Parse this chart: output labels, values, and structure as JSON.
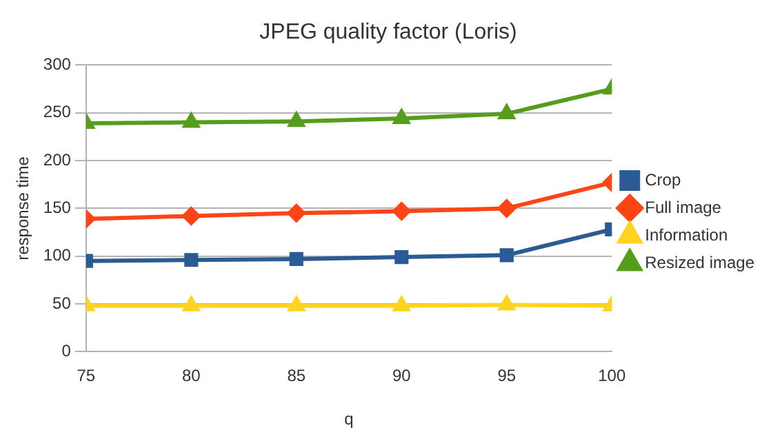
{
  "chart_data": {
    "type": "line",
    "title": "JPEG quality factor (Loris)",
    "xlabel": "q",
    "ylabel": "response time",
    "x": [
      75,
      80,
      85,
      90,
      95,
      100
    ],
    "series": [
      {
        "name": "Crop",
        "color": "#2a5b94",
        "marker": "square",
        "values": [
          95,
          96,
          97,
          99,
          101,
          128
        ]
      },
      {
        "name": "Full image",
        "color": "#ff4415",
        "marker": "diamond",
        "values": [
          139,
          142,
          145,
          147,
          150,
          177
        ]
      },
      {
        "name": "Information",
        "color": "#ffd320",
        "marker": "triangle",
        "values": [
          48,
          48,
          48,
          48,
          49,
          48
        ]
      },
      {
        "name": "Resized image",
        "color": "#579d1c",
        "marker": "triangle",
        "values": [
          239,
          240,
          241,
          244,
          249,
          275
        ]
      }
    ],
    "xlim": [
      75,
      100
    ],
    "xticks": [
      75,
      80,
      85,
      90,
      95,
      100
    ],
    "ylim": [
      0,
      300
    ],
    "yticks": [
      0,
      50,
      100,
      150,
      200,
      250,
      300
    ],
    "grid": "y",
    "legend": "right"
  }
}
